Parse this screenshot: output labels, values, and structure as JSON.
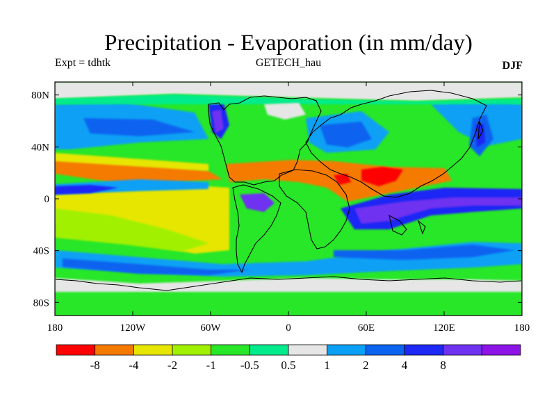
{
  "title": "Precipitation - Evaporation (in mm/day)",
  "subtitle_left": "Expt = tdhtk",
  "subtitle_center": "GETECH_hau",
  "subtitle_right": "DJF",
  "axes": {
    "x_ticks": [
      {
        "value": -180,
        "label": "180"
      },
      {
        "value": -120,
        "label": "120W"
      },
      {
        "value": -60,
        "label": "60W"
      },
      {
        "value": 0,
        "label": "0"
      },
      {
        "value": 60,
        "label": "60E"
      },
      {
        "value": 120,
        "label": "120E"
      },
      {
        "value": 180,
        "label": "180"
      }
    ],
    "y_ticks": [
      {
        "value": 80,
        "label": "80N"
      },
      {
        "value": 40,
        "label": "40N"
      },
      {
        "value": 0,
        "label": "0"
      },
      {
        "value": -40,
        "label": "40S"
      },
      {
        "value": -80,
        "label": "80S"
      }
    ],
    "lon_range": [
      -180,
      180
    ],
    "lat_range": [
      -90,
      90
    ]
  },
  "colorbar": {
    "colors": [
      "#ff0000",
      "#f57a00",
      "#e6e600",
      "#a0f000",
      "#28e628",
      "#00eb8c",
      "#e6e6e6",
      "#0aa0f5",
      "#0a64f0",
      "#1e28f5",
      "#6e32f0",
      "#8c14e6"
    ],
    "labels": [
      "-8",
      "-4",
      "-2",
      "-1",
      "-0.5",
      "0.5",
      "1",
      "2",
      "4",
      "8"
    ]
  },
  "field_levels": {
    "strong_evap": "#ff0000",
    "evap": "#f57a00",
    "moderate_evap": "#e6e600",
    "light_evap": "#a0f000",
    "near_neg": "#28e628",
    "near_pos": "#00eb8c",
    "neutral": "#e6e6e6",
    "wet": "#0aa0f5",
    "wetter": "#0a64f0",
    "very_wet": "#1e28f5",
    "extreme_wet": "#6e32f0"
  }
}
